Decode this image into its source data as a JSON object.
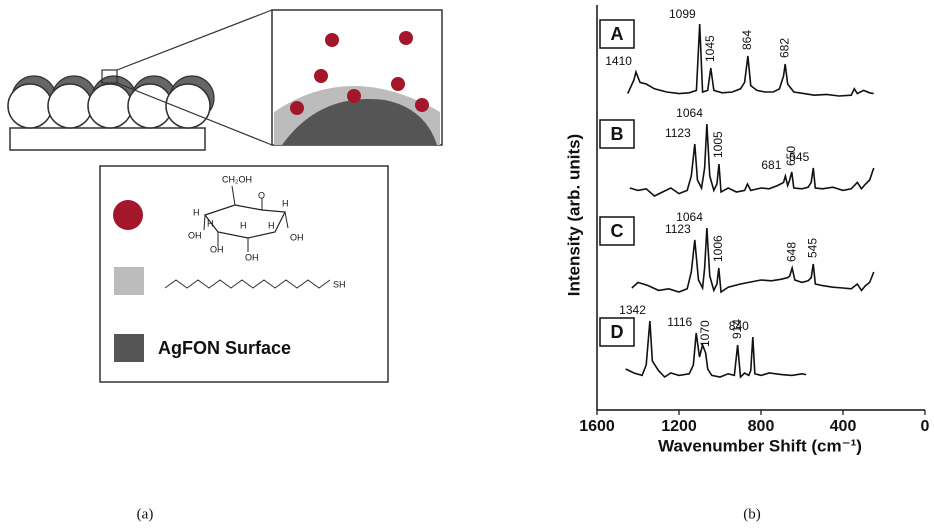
{
  "diagram": {
    "legend_text": "AgFON Surface",
    "chain_end": "SH",
    "molecule_labels": [
      "CH₂OH",
      "O",
      "H",
      "H",
      "OH",
      "OH",
      "H",
      "OH",
      "H",
      "H",
      "OH"
    ],
    "captions": [
      "(a)",
      "(b)"
    ]
  },
  "chart_data": {
    "type": "line",
    "x_label": "Wavenumber Shift (cm⁻¹)",
    "y_label": "Intensity (arb. units)",
    "xlim": [
      1600,
      0
    ],
    "xticks": [
      1600,
      1200,
      800,
      400,
      0
    ],
    "color": "#111111",
    "series": [
      {
        "name": "A",
        "peaks": [
          1410,
          1099,
          1045,
          864,
          682
        ],
        "x": [
          1450,
          1420,
          1410,
          1390,
          1360,
          1320,
          1260,
          1200,
          1150,
          1115,
          1099,
          1085,
          1060,
          1045,
          1030,
          990,
          940,
          900,
          880,
          864,
          850,
          820,
          780,
          740,
          710,
          690,
          682,
          670,
          640,
          590,
          540,
          480,
          420,
          360,
          345,
          330,
          300,
          270,
          250
        ],
        "values": [
          8,
          25,
          35,
          22,
          20,
          14,
          10,
          8,
          9,
          12,
          95,
          10,
          12,
          40,
          12,
          9,
          10,
          14,
          22,
          55,
          18,
          12,
          10,
          10,
          14,
          30,
          45,
          20,
          10,
          8,
          6,
          7,
          5,
          6,
          14,
          8,
          12,
          9,
          8
        ]
      },
      {
        "name": "B",
        "peaks": [
          1123,
          1064,
          1005,
          681,
          650,
          545
        ],
        "x": [
          1440,
          1400,
          1360,
          1320,
          1280,
          1240,
          1200,
          1160,
          1140,
          1123,
          1110,
          1090,
          1075,
          1064,
          1050,
          1030,
          1015,
          1005,
          995,
          960,
          920,
          880,
          866,
          850,
          800,
          760,
          720,
          690,
          681,
          670,
          660,
          650,
          640,
          600,
          570,
          555,
          545,
          535,
          500,
          450,
          400,
          360,
          330,
          310,
          290,
          270,
          250
        ],
        "values": [
          15,
          12,
          14,
          5,
          10,
          15,
          8,
          12,
          30,
          70,
          25,
          15,
          40,
          95,
          30,
          12,
          20,
          45,
          10,
          15,
          10,
          12,
          20,
          12,
          15,
          14,
          18,
          22,
          30,
          18,
          25,
          35,
          15,
          14,
          16,
          22,
          40,
          15,
          14,
          16,
          12,
          14,
          22,
          14,
          20,
          25,
          40
        ]
      },
      {
        "name": "C",
        "peaks": [
          1123,
          1064,
          1006,
          648,
          545
        ],
        "x": [
          1430,
          1400,
          1350,
          1300,
          1250,
          1200,
          1160,
          1140,
          1123,
          1105,
          1085,
          1075,
          1064,
          1050,
          1030,
          1015,
          1006,
          995,
          960,
          900,
          860,
          800,
          750,
          700,
          670,
          660,
          648,
          635,
          600,
          570,
          555,
          545,
          535,
          500,
          450,
          400,
          360,
          330,
          310,
          290,
          270,
          250
        ],
        "values": [
          15,
          22,
          18,
          12,
          14,
          10,
          14,
          35,
          75,
          25,
          15,
          40,
          90,
          30,
          12,
          20,
          40,
          10,
          16,
          20,
          22,
          25,
          24,
          26,
          28,
          30,
          40,
          25,
          22,
          24,
          28,
          45,
          20,
          18,
          16,
          15,
          14,
          20,
          12,
          18,
          22,
          35
        ]
      },
      {
        "name": "D",
        "peaks": [
          1342,
          1116,
          1070,
          914,
          840
        ],
        "x": [
          1460,
          1420,
          1380,
          1360,
          1342,
          1330,
          1300,
          1270,
          1240,
          1200,
          1150,
          1130,
          1116,
          1100,
          1085,
          1070,
          1060,
          1040,
          1000,
          960,
          930,
          914,
          900,
          880,
          860,
          850,
          840,
          830,
          800,
          760,
          700,
          650,
          600,
          580
        ],
        "values": [
          20,
          15,
          12,
          25,
          80,
          30,
          18,
          10,
          15,
          12,
          14,
          25,
          65,
          35,
          50,
          40,
          20,
          12,
          10,
          14,
          12,
          50,
          10,
          15,
          12,
          18,
          60,
          14,
          12,
          15,
          13,
          12,
          14,
          13
        ]
      }
    ]
  }
}
